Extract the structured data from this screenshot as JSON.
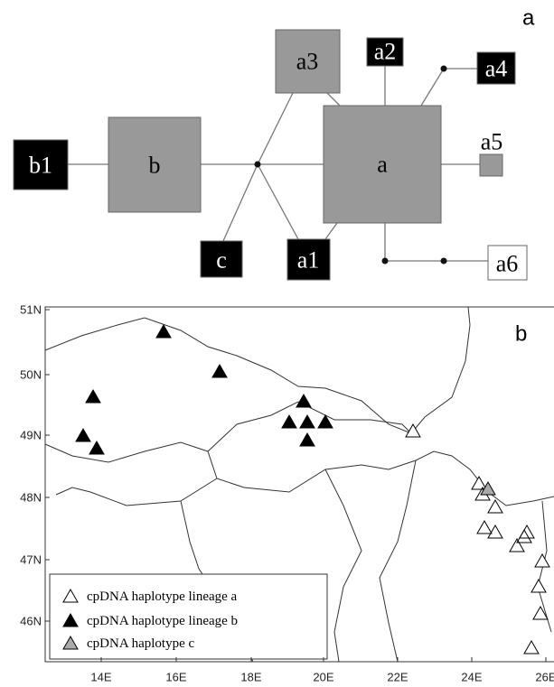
{
  "network": {
    "panel_label": "a",
    "nodes": [
      "b1",
      "b",
      "a3",
      "a2",
      "a4",
      "a",
      "a5",
      "a6",
      "c",
      "a1"
    ]
  },
  "map": {
    "panel_label": "b",
    "x_labels": [
      "14E",
      "16E",
      "18E",
      "20E",
      "22E",
      "24E",
      "26E"
    ],
    "y_labels": [
      "51N",
      "50N",
      "49N",
      "48N",
      "47N",
      "46N"
    ],
    "legend": [
      "cpDNA haplotype lineage a",
      "cpDNA haplotype lineage b",
      "cpDNA haplotype c"
    ]
  }
}
